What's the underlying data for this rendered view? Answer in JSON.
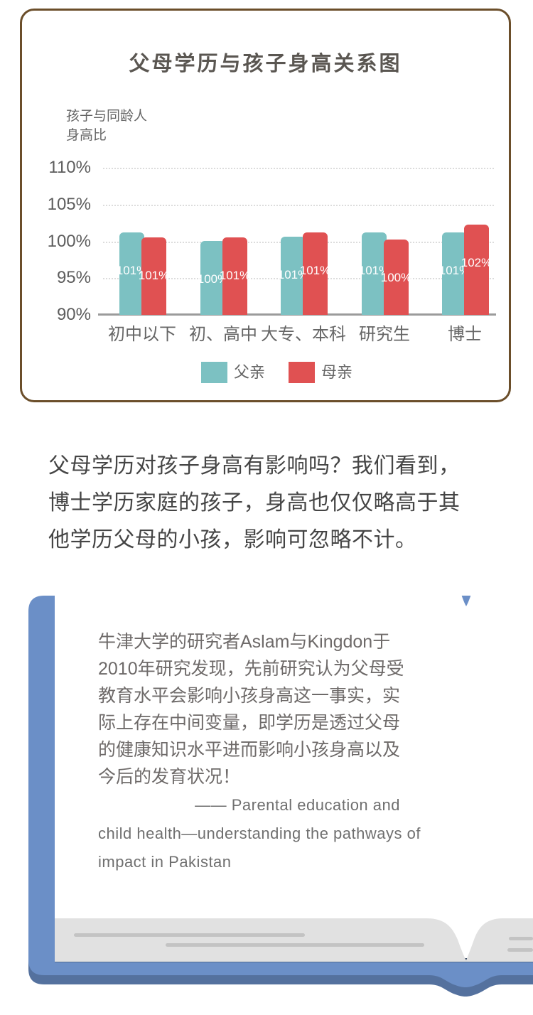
{
  "chart_card": {
    "title": "父母学历与孩子身高关系图",
    "y_axis_unit_lines": [
      "孩子与同龄人",
      "身高比"
    ],
    "border_color": "#6b4e2a"
  },
  "chart_data": {
    "type": "bar",
    "title": "父母学历与孩子身高关系图",
    "ylabel": "孩子与同龄人身高比",
    "categories": [
      "初中以下",
      "初、高中",
      "大专、本科",
      "研究生",
      "博士"
    ],
    "series": [
      {
        "name": "父亲",
        "color": "#7cc1c2",
        "values": [
          101.2,
          100.0,
          100.6,
          101.2,
          101.2
        ],
        "labels": [
          "101%",
          "100%",
          "101%",
          "101%",
          "101%"
        ]
      },
      {
        "name": "母亲",
        "color": "#e05152",
        "values": [
          100.5,
          100.5,
          101.2,
          100.2,
          102.3
        ],
        "labels": [
          "101%",
          "101%",
          "101%",
          "100%",
          "102%"
        ]
      }
    ],
    "y_ticks": [
      "110%",
      "105%",
      "100%",
      "95%",
      "90%"
    ],
    "y_tick_values": [
      110,
      105,
      100,
      95,
      90
    ],
    "ylim": [
      90,
      110
    ],
    "grid": "horizontal-dotted",
    "legend_position": "bottom",
    "axis_color": "#9b9b9b",
    "grid_color": "#dcdcdc"
  },
  "summary_paragraph": {
    "lines": [
      "父母学历对孩子身高有影响吗？我们看到，",
      "博士学历家庭的孩子，身高也仅仅略高于其",
      "他学历父母的小孩，影响可忽略不计。"
    ]
  },
  "book": {
    "quote_lines": [
      "牛津大学的研究者Aslam与Kingdon于",
      "2010年研究发现，先前研究认为父母受",
      "教育水平会影响小孩身高这一事实，实",
      "际上存在中间变量，即学历是透过父母",
      "的健康知识水平进而影响小孩身高以及",
      "今后的发育状况！"
    ],
    "citation_lines": [
      "—— Parental education and",
      "child health—understanding the pathways of",
      "impact in Pakistan"
    ],
    "cover_color": "#6b8fc7",
    "cover_shadow_color": "#54719e",
    "spine_line_color": "#36465f",
    "page_band_color": "#e1e1e1",
    "page_line_color": "#c3c3c3",
    "page_color": "#ffffff"
  }
}
